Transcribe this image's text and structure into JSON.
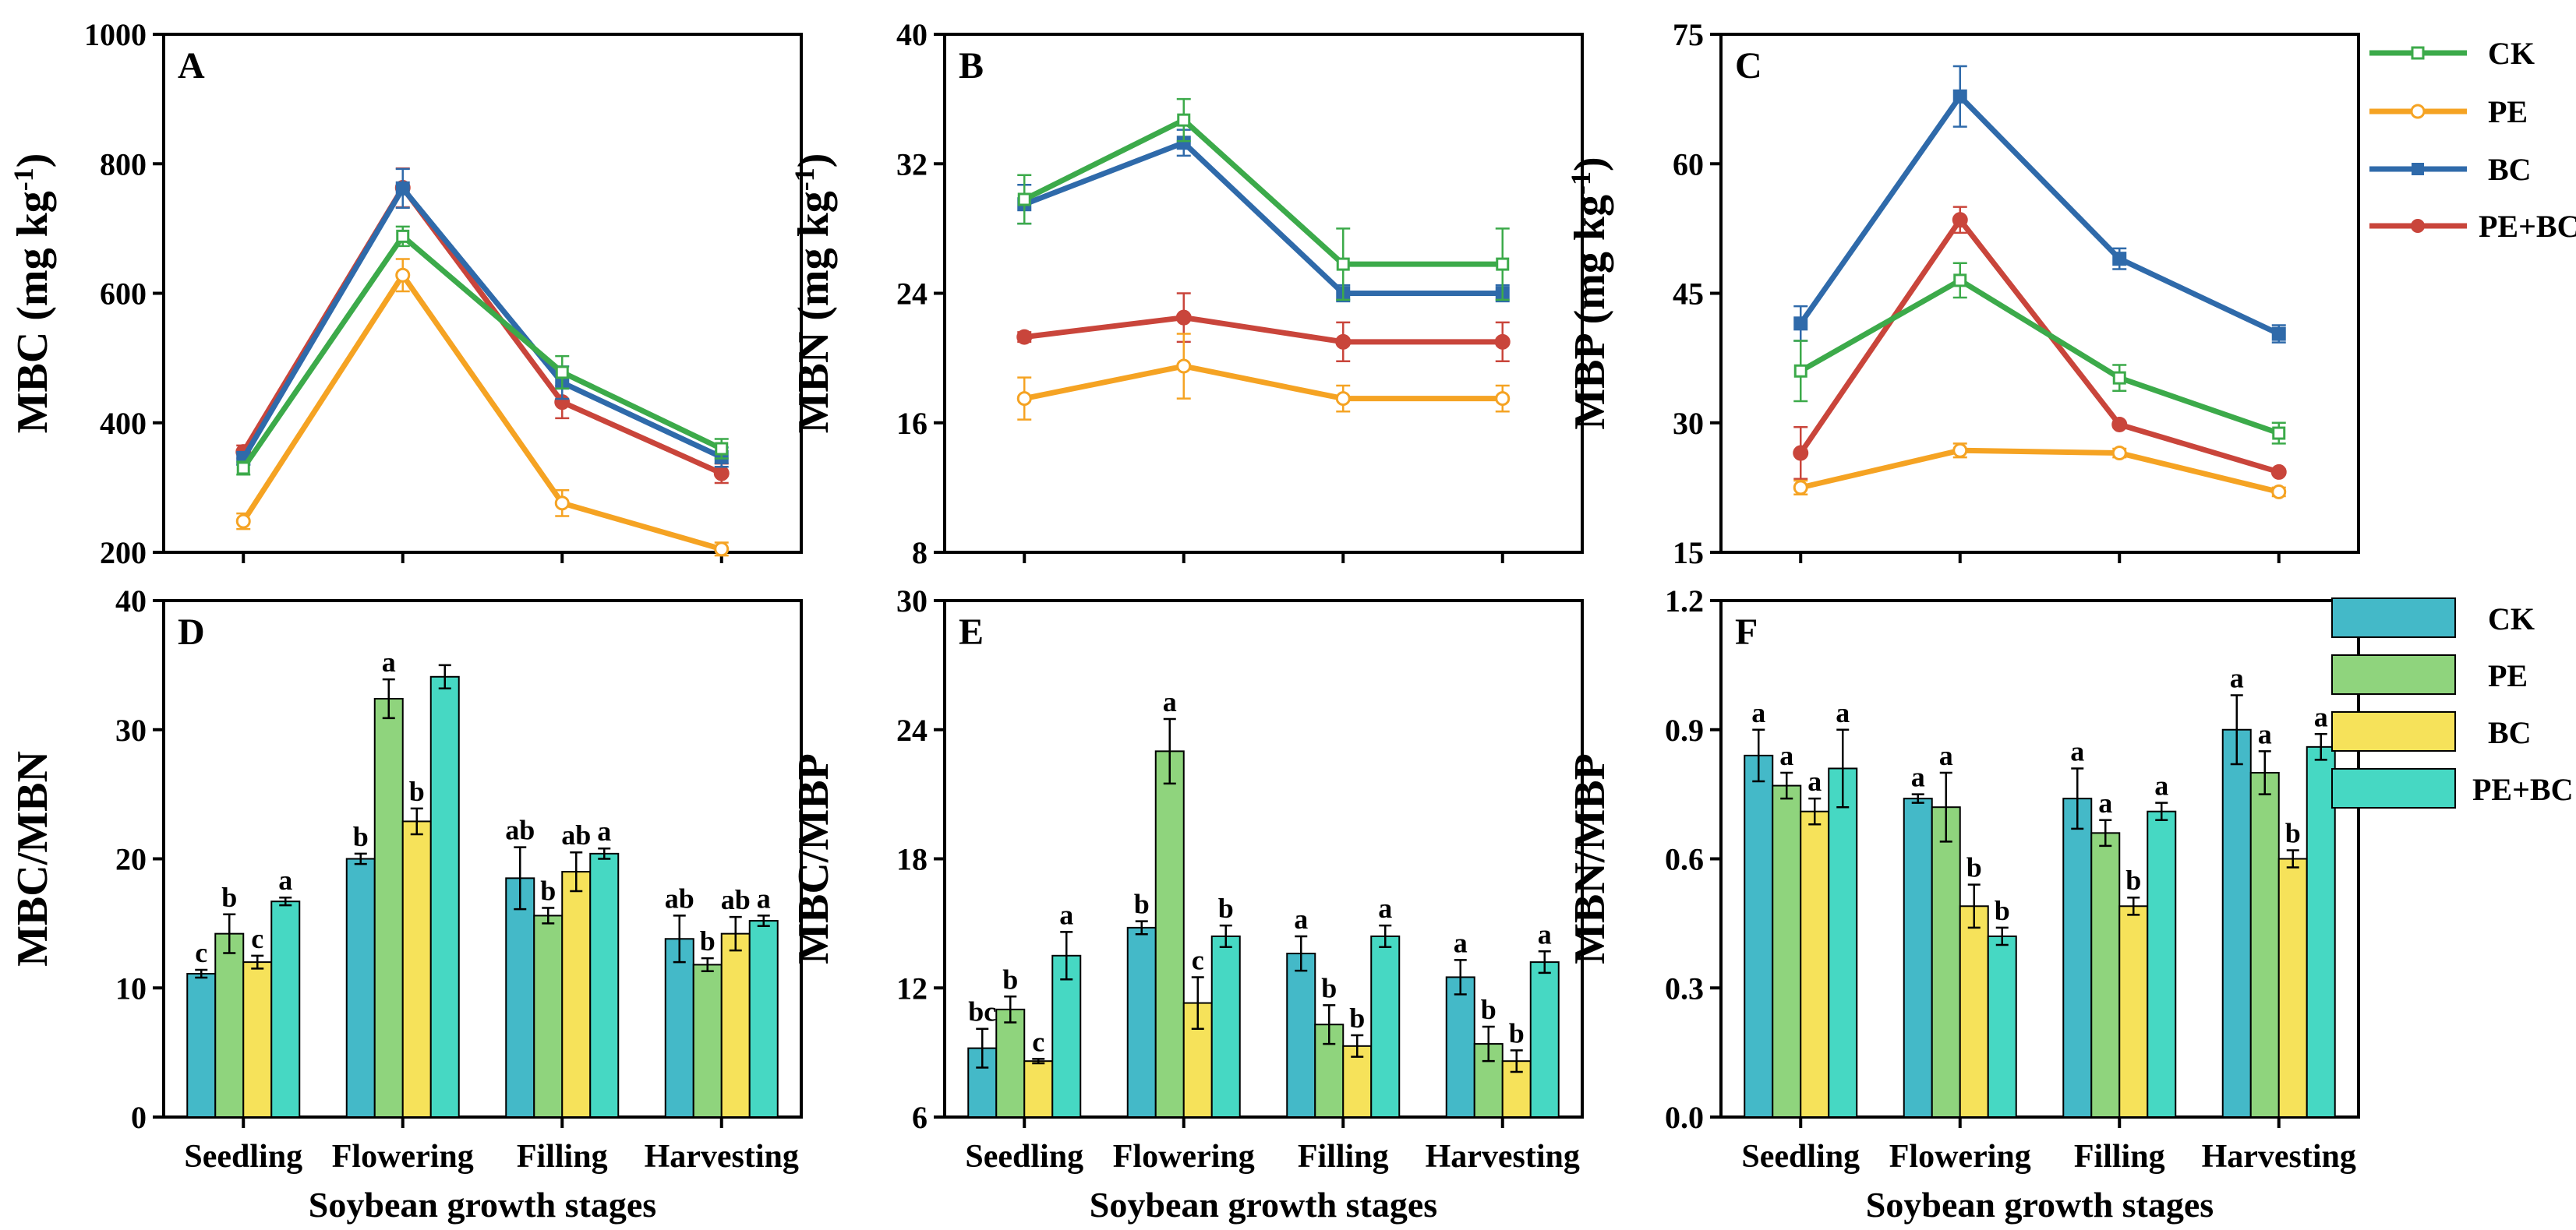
{
  "chart_data": [
    {
      "id": "A",
      "panel_label": "A",
      "type": "line",
      "categories": [
        "Seedling",
        "Flowering",
        "Filling",
        "Harvesting"
      ],
      "ylabel": "MBC (mg kg-1)",
      "ylabel_parts": [
        "MBC (mg kg",
        "-1",
        ")"
      ],
      "xlabel": "",
      "ylim": [
        200,
        1000
      ],
      "yticks": [
        200,
        400,
        600,
        800,
        1000
      ],
      "series": [
        {
          "name": "CK",
          "marker": "square-open",
          "values": [
            330,
            688,
            478,
            360
          ],
          "errors": [
            10,
            15,
            25,
            15
          ]
        },
        {
          "name": "PE",
          "marker": "circle-open",
          "values": [
            248,
            628,
            276,
            205
          ],
          "errors": [
            12,
            25,
            20,
            10
          ]
        },
        {
          "name": "BC",
          "marker": "square",
          "values": [
            345,
            762,
            462,
            347
          ],
          "errors": [
            10,
            30,
            25,
            15
          ]
        },
        {
          "name": "PE+BC",
          "marker": "circle",
          "values": [
            355,
            763,
            432,
            322
          ],
          "errors": [
            10,
            30,
            25,
            15
          ]
        }
      ]
    },
    {
      "id": "B",
      "panel_label": "B",
      "type": "line",
      "categories": [
        "Seedling",
        "Flowering",
        "Filling",
        "Harvesting"
      ],
      "ylabel": "MBN (mg kg-1)",
      "ylabel_parts": [
        "MBN (mg kg",
        "-1",
        ")"
      ],
      "xlabel": "",
      "ylim": [
        8,
        40
      ],
      "yticks": [
        8,
        16,
        24,
        32,
        40
      ],
      "series": [
        {
          "name": "CK",
          "marker": "square-open",
          "values": [
            29.8,
            34.7,
            25.8,
            25.8
          ],
          "errors": [
            1.5,
            1.3,
            2.2,
            2.2
          ]
        },
        {
          "name": "PE",
          "marker": "circle-open",
          "values": [
            17.5,
            19.5,
            17.5,
            17.5
          ],
          "errors": [
            1.3,
            2.0,
            0.8,
            0.8
          ]
        },
        {
          "name": "BC",
          "marker": "square",
          "values": [
            29.5,
            33.3,
            24.0,
            24.0
          ],
          "errors": [
            1.2,
            0.8,
            0.5,
            0.5
          ]
        },
        {
          "name": "PE+BC",
          "marker": "circle",
          "values": [
            21.3,
            22.5,
            21.0,
            21.0
          ],
          "errors": [
            0.3,
            1.5,
            1.2,
            1.2
          ]
        }
      ]
    },
    {
      "id": "C",
      "panel_label": "C",
      "type": "line",
      "categories": [
        "Seedling",
        "Flowering",
        "Filling",
        "Harvesting"
      ],
      "ylabel": "MBP (mg kg-1)",
      "ylabel_parts": [
        "MBP (mg kg",
        "-1",
        ")"
      ],
      "xlabel": "",
      "ylim": [
        15,
        75
      ],
      "yticks": [
        15,
        30,
        45,
        60,
        75
      ],
      "series": [
        {
          "name": "CK",
          "marker": "square-open",
          "values": [
            36.0,
            46.5,
            35.2,
            28.8
          ],
          "errors": [
            3.5,
            2.0,
            1.5,
            1.2
          ]
        },
        {
          "name": "PE",
          "marker": "circle-open",
          "values": [
            22.5,
            26.8,
            26.5,
            22.0
          ],
          "errors": [
            0.8,
            0.8,
            0.5,
            0.5
          ]
        },
        {
          "name": "BC",
          "marker": "square",
          "values": [
            41.5,
            67.8,
            49.0,
            40.3
          ],
          "errors": [
            2.0,
            3.5,
            1.2,
            1.0
          ]
        },
        {
          "name": "PE+BC",
          "marker": "circle",
          "values": [
            26.5,
            53.5,
            29.8,
            24.3
          ],
          "errors": [
            3.0,
            1.5,
            0.3,
            0.3
          ]
        }
      ]
    },
    {
      "id": "D",
      "panel_label": "D",
      "type": "bar",
      "categories": [
        "Seedling",
        "Flowering",
        "Filling",
        "Harvesting"
      ],
      "ylabel": "MBC/MBN",
      "xlabel": "Soybean growth stages",
      "ylim": [
        0,
        40
      ],
      "yticks": [
        0,
        10,
        20,
        30,
        40
      ],
      "series": [
        {
          "name": "CK",
          "values": [
            11.1,
            20.0,
            18.5,
            13.8
          ],
          "errors": [
            0.3,
            0.4,
            2.4,
            1.8
          ],
          "letters": [
            "c",
            "b",
            "ab",
            "ab"
          ]
        },
        {
          "name": "PE",
          "values": [
            14.2,
            32.4,
            15.6,
            11.8
          ],
          "errors": [
            1.5,
            1.5,
            0.6,
            0.5
          ],
          "letters": [
            "b",
            "a",
            "b",
            "b"
          ]
        },
        {
          "name": "BC",
          "values": [
            12.0,
            22.9,
            19.0,
            14.2
          ],
          "errors": [
            0.5,
            1.0,
            1.5,
            1.3
          ],
          "letters": [
            "c",
            "b",
            "ab",
            "ab"
          ]
        },
        {
          "name": "PE+BC",
          "values": [
            16.7,
            34.1,
            20.4,
            15.2
          ],
          "errors": [
            0.3,
            0.9,
            0.4,
            0.4
          ],
          "letters": [
            "a",
            "",
            "a",
            "a"
          ]
        }
      ]
    },
    {
      "id": "E",
      "panel_label": "E",
      "type": "bar",
      "categories": [
        "Seedling",
        "Flowering",
        "Filling",
        "Harvesting"
      ],
      "ylabel": "MBC/MBP",
      "xlabel": "Soybean growth stages",
      "ylim": [
        6,
        30
      ],
      "yticks": [
        6,
        12,
        18,
        24,
        30
      ],
      "series": [
        {
          "name": "CK",
          "values": [
            9.2,
            14.8,
            13.6,
            12.5
          ],
          "errors": [
            0.9,
            0.3,
            0.8,
            0.8
          ],
          "letters": [
            "bc",
            "b",
            "a",
            "a"
          ]
        },
        {
          "name": "PE",
          "values": [
            11.0,
            23.0,
            10.3,
            9.4
          ],
          "errors": [
            0.6,
            1.5,
            0.9,
            0.8
          ],
          "letters": [
            "b",
            "a",
            "b",
            "b"
          ]
        },
        {
          "name": "BC",
          "values": [
            8.6,
            11.3,
            9.3,
            8.6
          ],
          "errors": [
            0.1,
            1.2,
            0.5,
            0.5
          ],
          "letters": [
            "c",
            "c",
            "b",
            "b"
          ]
        },
        {
          "name": "PE+BC",
          "values": [
            13.5,
            14.4,
            14.4,
            13.2
          ],
          "errors": [
            1.1,
            0.5,
            0.5,
            0.5
          ],
          "letters": [
            "a",
            "b",
            "a",
            "a"
          ]
        }
      ]
    },
    {
      "id": "F",
      "panel_label": "F",
      "type": "bar",
      "categories": [
        "Seedling",
        "Flowering",
        "Filling",
        "Harvesting"
      ],
      "ylabel": "MBN/MBP",
      "xlabel": "Soybean growth stages",
      "ylim": [
        0.0,
        1.2
      ],
      "yticks": [
        0.0,
        0.3,
        0.6,
        0.9,
        1.2
      ],
      "tick_decimals": 1,
      "series": [
        {
          "name": "CK",
          "values": [
            0.84,
            0.74,
            0.74,
            0.9
          ],
          "errors": [
            0.06,
            0.01,
            0.07,
            0.08
          ],
          "letters": [
            "a",
            "a",
            "a",
            "a"
          ]
        },
        {
          "name": "PE",
          "values": [
            0.77,
            0.72,
            0.66,
            0.8
          ],
          "errors": [
            0.03,
            0.08,
            0.03,
            0.05
          ],
          "letters": [
            "a",
            "a",
            "a",
            "a"
          ]
        },
        {
          "name": "BC",
          "values": [
            0.71,
            0.49,
            0.49,
            0.6
          ],
          "errors": [
            0.03,
            0.05,
            0.02,
            0.02
          ],
          "letters": [
            "a",
            "b",
            "b",
            "b"
          ]
        },
        {
          "name": "PE+BC",
          "values": [
            0.81,
            0.42,
            0.71,
            0.86
          ],
          "errors": [
            0.09,
            0.02,
            0.02,
            0.03
          ],
          "letters": [
            "a",
            "b",
            "a",
            "a"
          ]
        }
      ]
    }
  ],
  "line_legend": {
    "entries": [
      "CK",
      "PE",
      "BC",
      "PE+BC"
    ],
    "colors": [
      "#3caa4a",
      "#f5a323",
      "#2f6aaa",
      "#c9453b"
    ]
  },
  "bar_legend": {
    "entries": [
      "CK",
      "PE",
      "BC",
      "PE+BC"
    ],
    "colors": [
      "#44b9c8",
      "#8fd47d",
      "#f6e25a",
      "#46d8c3"
    ]
  }
}
